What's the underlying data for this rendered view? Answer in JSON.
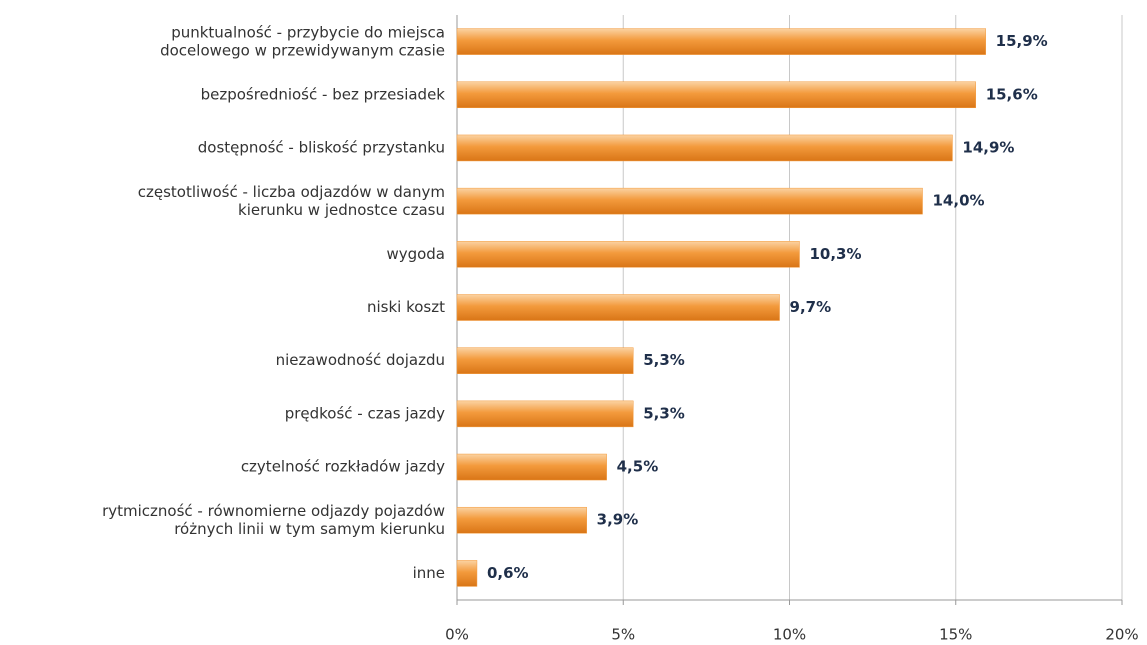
{
  "chart_data": {
    "type": "bar",
    "orientation": "horizontal",
    "categories": [
      "punktualność - przybycie do miejsca\ndocelowego w przewidywanym czasie",
      "bezpośredniość - bez przesiadek",
      "dostępność - bliskość przystanku",
      "częstotliwość - liczba odjazdów w danym\nkierunku w jednostce czasu",
      "wygoda",
      "niski koszt",
      "niezawodność dojazdu",
      "prędkość - czas jazdy",
      "czytelność rozkładów jazdy",
      "rytmiczność - równomierne odjazdy pojazdów\nróżnych linii w tym samym kierunku",
      "inne"
    ],
    "values": [
      15.9,
      15.6,
      14.9,
      14.0,
      10.3,
      9.7,
      5.3,
      5.3,
      4.5,
      3.9,
      0.6
    ],
    "value_labels": [
      "15,9%",
      "15,6%",
      "14,9%",
      "14,0%",
      "10,3%",
      "9,7%",
      "5,3%",
      "5,3%",
      "4,5%",
      "3,9%",
      "0,6%"
    ],
    "color": "#f39a3c",
    "xlim": [
      0,
      20
    ],
    "xticks": [
      {
        "value": 0,
        "label": "0%"
      },
      {
        "value": 5,
        "label": "5%"
      },
      {
        "value": 10,
        "label": "10%"
      },
      {
        "value": 15,
        "label": "15%"
      },
      {
        "value": 20,
        "label": "20%"
      }
    ],
    "grid": true
  }
}
